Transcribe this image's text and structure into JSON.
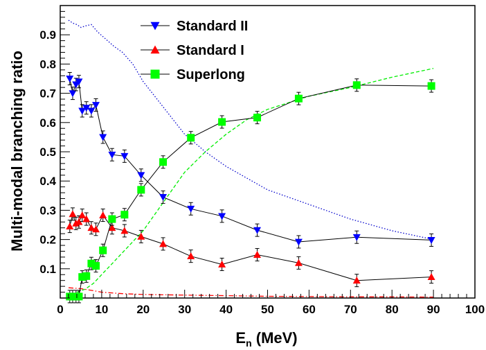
{
  "chart_data": {
    "type": "line",
    "xlabel": "E",
    "xlabel_sub": "n",
    "xlabel_unit": " (MeV)",
    "ylabel": "Multi-modal branching ratio",
    "xlim": [
      0,
      100
    ],
    "ylim": [
      0,
      1.0
    ],
    "x_ticks": [
      0,
      10,
      20,
      30,
      40,
      50,
      60,
      70,
      80,
      90,
      100
    ],
    "y_ticks": [
      0.1,
      0.2,
      0.3,
      0.4,
      0.5,
      0.6,
      0.7,
      0.8,
      0.9
    ],
    "y_tick_labels": [
      "0.1",
      "0.2",
      "0.3",
      "0.4",
      "0.5",
      "0.6",
      "0.7",
      "0.8",
      "0.9"
    ],
    "legend_position": "top-center",
    "series": [
      {
        "name": "Standard II",
        "marker": "triangle-down",
        "color": "#0000ff",
        "x": [
          2.3,
          3.0,
          3.8,
          4.5,
          5.3,
          6.3,
          7.5,
          8.6,
          10.3,
          12.5,
          15.5,
          19.5,
          24.8,
          31.5,
          39.0,
          47.5,
          57.5,
          71.5,
          89.5
        ],
        "y": [
          0.75,
          0.7,
          0.73,
          0.74,
          0.64,
          0.65,
          0.64,
          0.66,
          0.55,
          0.49,
          0.485,
          0.42,
          0.345,
          0.305,
          0.28,
          0.232,
          0.192,
          0.208,
          0.198
        ]
      },
      {
        "name": "Standard I",
        "marker": "triangle-up",
        "color": "#ff0000",
        "x": [
          2.3,
          3.0,
          3.8,
          4.5,
          5.3,
          6.3,
          7.5,
          8.6,
          10.3,
          12.5,
          15.5,
          19.5,
          24.8,
          31.5,
          39.0,
          47.5,
          57.5,
          71.5,
          89.5
        ],
        "y": [
          0.245,
          0.287,
          0.255,
          0.26,
          0.283,
          0.27,
          0.24,
          0.235,
          0.283,
          0.24,
          0.23,
          0.21,
          0.185,
          0.143,
          0.115,
          0.148,
          0.12,
          0.06,
          0.072
        ]
      },
      {
        "name": "Superlong",
        "marker": "square",
        "color": "#00ff00",
        "x": [
          2.3,
          3.0,
          3.8,
          4.5,
          5.3,
          6.3,
          7.5,
          8.6,
          10.3,
          12.5,
          15.5,
          19.5,
          24.8,
          31.5,
          39.0,
          47.5,
          57.5,
          71.5,
          89.5
        ],
        "y": [
          0.005,
          0.005,
          0.005,
          0.005,
          0.072,
          0.075,
          0.118,
          0.11,
          0.163,
          0.27,
          0.285,
          0.37,
          0.465,
          0.548,
          0.602,
          0.617,
          0.682,
          0.728,
          0.725
        ]
      }
    ],
    "reference_curves": [
      {
        "style": "dotted",
        "color": "#0000cc",
        "x": [
          2,
          3,
          4,
          5,
          6,
          7.5,
          9,
          11,
          13,
          15,
          17.5,
          20,
          25,
          30,
          35,
          40,
          45,
          50,
          60,
          70,
          80,
          90
        ],
        "y": [
          0.95,
          0.94,
          0.935,
          0.925,
          0.93,
          0.935,
          0.91,
          0.885,
          0.86,
          0.84,
          0.8,
          0.74,
          0.65,
          0.56,
          0.5,
          0.45,
          0.41,
          0.37,
          0.32,
          0.27,
          0.23,
          0.2
        ]
      },
      {
        "style": "dashed",
        "color": "#00ee00",
        "x": [
          4,
          5,
          6,
          7,
          8,
          9,
          10,
          12,
          14,
          16,
          18,
          20,
          22.5,
          25,
          27.5,
          30,
          35,
          40,
          45,
          50,
          60,
          70,
          80,
          90
        ],
        "y": [
          0.02,
          0.025,
          0.03,
          0.04,
          0.05,
          0.065,
          0.08,
          0.11,
          0.14,
          0.17,
          0.2,
          0.23,
          0.28,
          0.33,
          0.38,
          0.43,
          0.5,
          0.56,
          0.61,
          0.645,
          0.69,
          0.72,
          0.755,
          0.785
        ]
      },
      {
        "style": "dash-dot",
        "color": "#ff0000",
        "x": [
          2,
          5,
          8,
          10,
          15,
          20,
          30,
          40,
          50,
          60,
          70,
          80,
          90
        ],
        "y": [
          0.035,
          0.032,
          0.025,
          0.02,
          0.015,
          0.012,
          0.01,
          0.008,
          0.006,
          0.005,
          0.004,
          0.004,
          0.003
        ]
      }
    ]
  }
}
